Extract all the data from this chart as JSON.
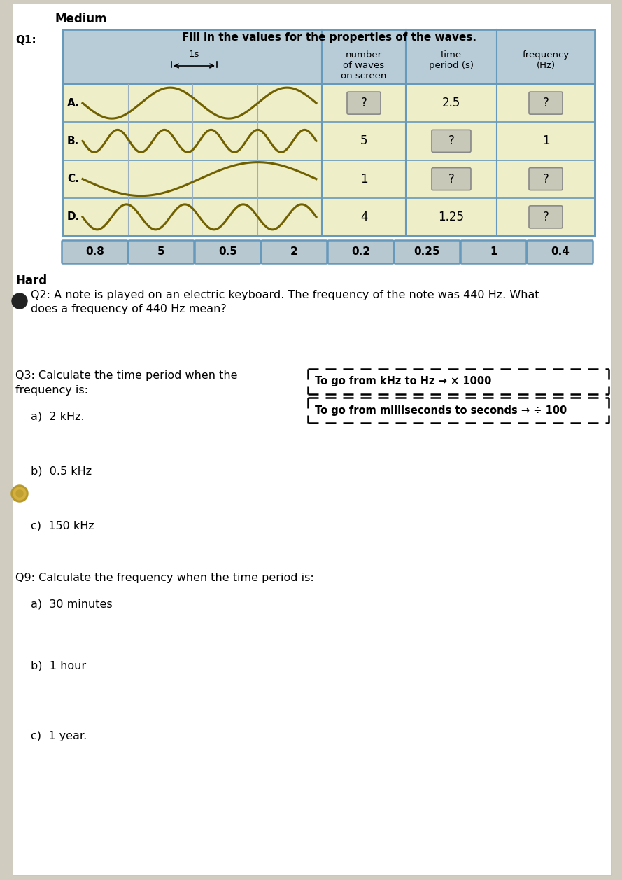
{
  "title": "Medium",
  "q1_label": "Q1:",
  "q1_title": "Fill in the values for the properties of the waves.",
  "header_cols": [
    "number\nof waves\non screen",
    "time\nperiod (s)",
    "frequency\n(Hz)"
  ],
  "rows": [
    {
      "label": "A.",
      "num_waves": "?",
      "period": "2.5",
      "frequency": "?",
      "num_box": true,
      "period_box": false,
      "freq_box": true,
      "wave_count": 2,
      "amplitude": 22
    },
    {
      "label": "B.",
      "num_waves": "5",
      "period": "?",
      "frequency": "1",
      "num_box": false,
      "period_box": true,
      "freq_box": false,
      "wave_count": 5,
      "amplitude": 16
    },
    {
      "label": "C.",
      "num_waves": "1",
      "period": "?",
      "frequency": "?",
      "num_box": false,
      "period_box": true,
      "freq_box": true,
      "wave_count": 1,
      "amplitude": 24
    },
    {
      "label": "D.",
      "num_waves": "4",
      "period": "1.25",
      "frequency": "?",
      "num_box": false,
      "period_box": false,
      "freq_box": true,
      "wave_count": 4,
      "amplitude": 18
    }
  ],
  "answer_boxes": [
    "0.8",
    "5",
    "0.5",
    "2",
    "0.2",
    "0.25",
    "1",
    "0.4"
  ],
  "hard_label": "Hard",
  "q2_text": "Q2: A note is played on an electric keyboard. The frequency of the note was 440 Hz. What\ndoes a frequency of 440 Hz mean?",
  "q3_label": "Q3: Calculate the time period when the\nfrequency is:",
  "q3_hint1": "To go from kHz to Hz → × 1000",
  "q3_hint2": "To go from milliseconds to seconds → ÷ 100",
  "q3a": "a)  2 kHz.",
  "q3b": "b)  0.5 kHz",
  "q3c": "c)  150 kHz",
  "q9_label": "Q9: Calculate the frequency when the time period is:",
  "q9a": "a)  30 minutes",
  "q9b": "b)  1 hour",
  "q9c": "c)  1 year.",
  "table_header_color": "#b8ccd8",
  "table_cell_color": "#eeeec8",
  "answer_box_color": "#b8c8d0",
  "cell_box_color": "#c8c8b8",
  "page_bg": "#ffffff",
  "outer_bg": "#d0ccc0"
}
